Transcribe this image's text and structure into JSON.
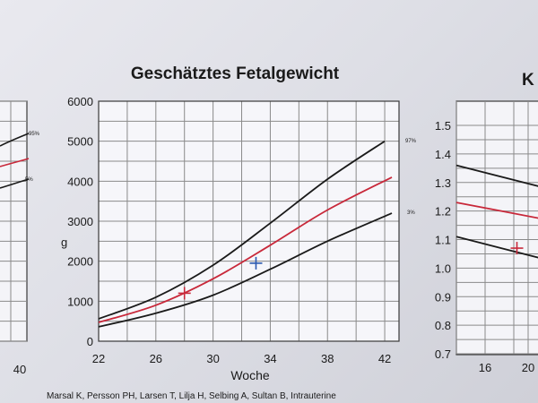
{
  "main_chart": {
    "title": "Geschätztes Fetalgewicht",
    "xlabel": "Woche",
    "ylabel": "g",
    "percentile_labels": [
      "97%",
      "3%"
    ]
  },
  "right_chart": {
    "title_fragment": "K",
    "y_ticks": [
      "1.5",
      "1.4",
      "1.3",
      "1.2",
      "1.1",
      "1.0",
      "0.9",
      "0.8",
      "0.7"
    ],
    "x_ticks": [
      "16",
      "20"
    ]
  },
  "left_chart": {
    "x_tick": "40",
    "percentile_labels": [
      "95%",
      "5%"
    ]
  },
  "footer": {
    "citation": "Marsal K, Persson PH, Larsen T, Lilja H, Selbing A, Sultan B, Intrauterine"
  },
  "chart_data": [
    {
      "type": "line",
      "title": "Geschätztes Fetalgewicht",
      "xlabel": "Woche",
      "ylabel": "g",
      "xlim": [
        22,
        43
      ],
      "ylim": [
        0,
        6000
      ],
      "x_ticks": [
        22,
        26,
        30,
        34,
        38,
        42
      ],
      "y_ticks": [
        0,
        1000,
        2000,
        3000,
        4000,
        5000,
        6000
      ],
      "grid": true,
      "series": [
        {
          "name": "97%",
          "color": "#1a1a1a",
          "x": [
            22,
            26,
            30,
            34,
            38,
            42
          ],
          "values": [
            560,
            1100,
            1900,
            2950,
            4050,
            5000
          ]
        },
        {
          "name": "",
          "color": "#c8283a",
          "x": [
            22,
            26,
            30,
            34,
            38,
            42.5
          ],
          "values": [
            470,
            900,
            1560,
            2400,
            3280,
            4100
          ]
        },
        {
          "name": "3%",
          "color": "#1a1a1a",
          "x": [
            22,
            26,
            30,
            34,
            38,
            42.5
          ],
          "values": [
            360,
            700,
            1150,
            1800,
            2500,
            3200
          ]
        }
      ],
      "markers": [
        {
          "x": 28,
          "y": 1200,
          "color": "#c8283a"
        },
        {
          "x": 33,
          "y": 1950,
          "color": "#2a58b0"
        }
      ]
    },
    {
      "type": "line",
      "ylim": [
        0.7,
        1.5
      ],
      "y_ticks": [
        0.7,
        0.8,
        0.9,
        1.0,
        1.1,
        1.2,
        1.3,
        1.4,
        1.5
      ],
      "x_ticks": [
        16,
        20
      ],
      "grid": true,
      "series": [
        {
          "name": "",
          "color": "#1a1a1a",
          "x": [
            14,
            22
          ],
          "values": [
            1.36,
            1.28
          ]
        },
        {
          "name": "",
          "color": "#c8283a",
          "x": [
            14,
            22
          ],
          "values": [
            1.23,
            1.17
          ]
        },
        {
          "name": "",
          "color": "#1a1a1a",
          "x": [
            14,
            22
          ],
          "values": [
            1.11,
            1.03
          ]
        }
      ],
      "markers": [
        {
          "x": 19.4,
          "y": 1.07,
          "color": "#c8283a"
        }
      ]
    }
  ]
}
